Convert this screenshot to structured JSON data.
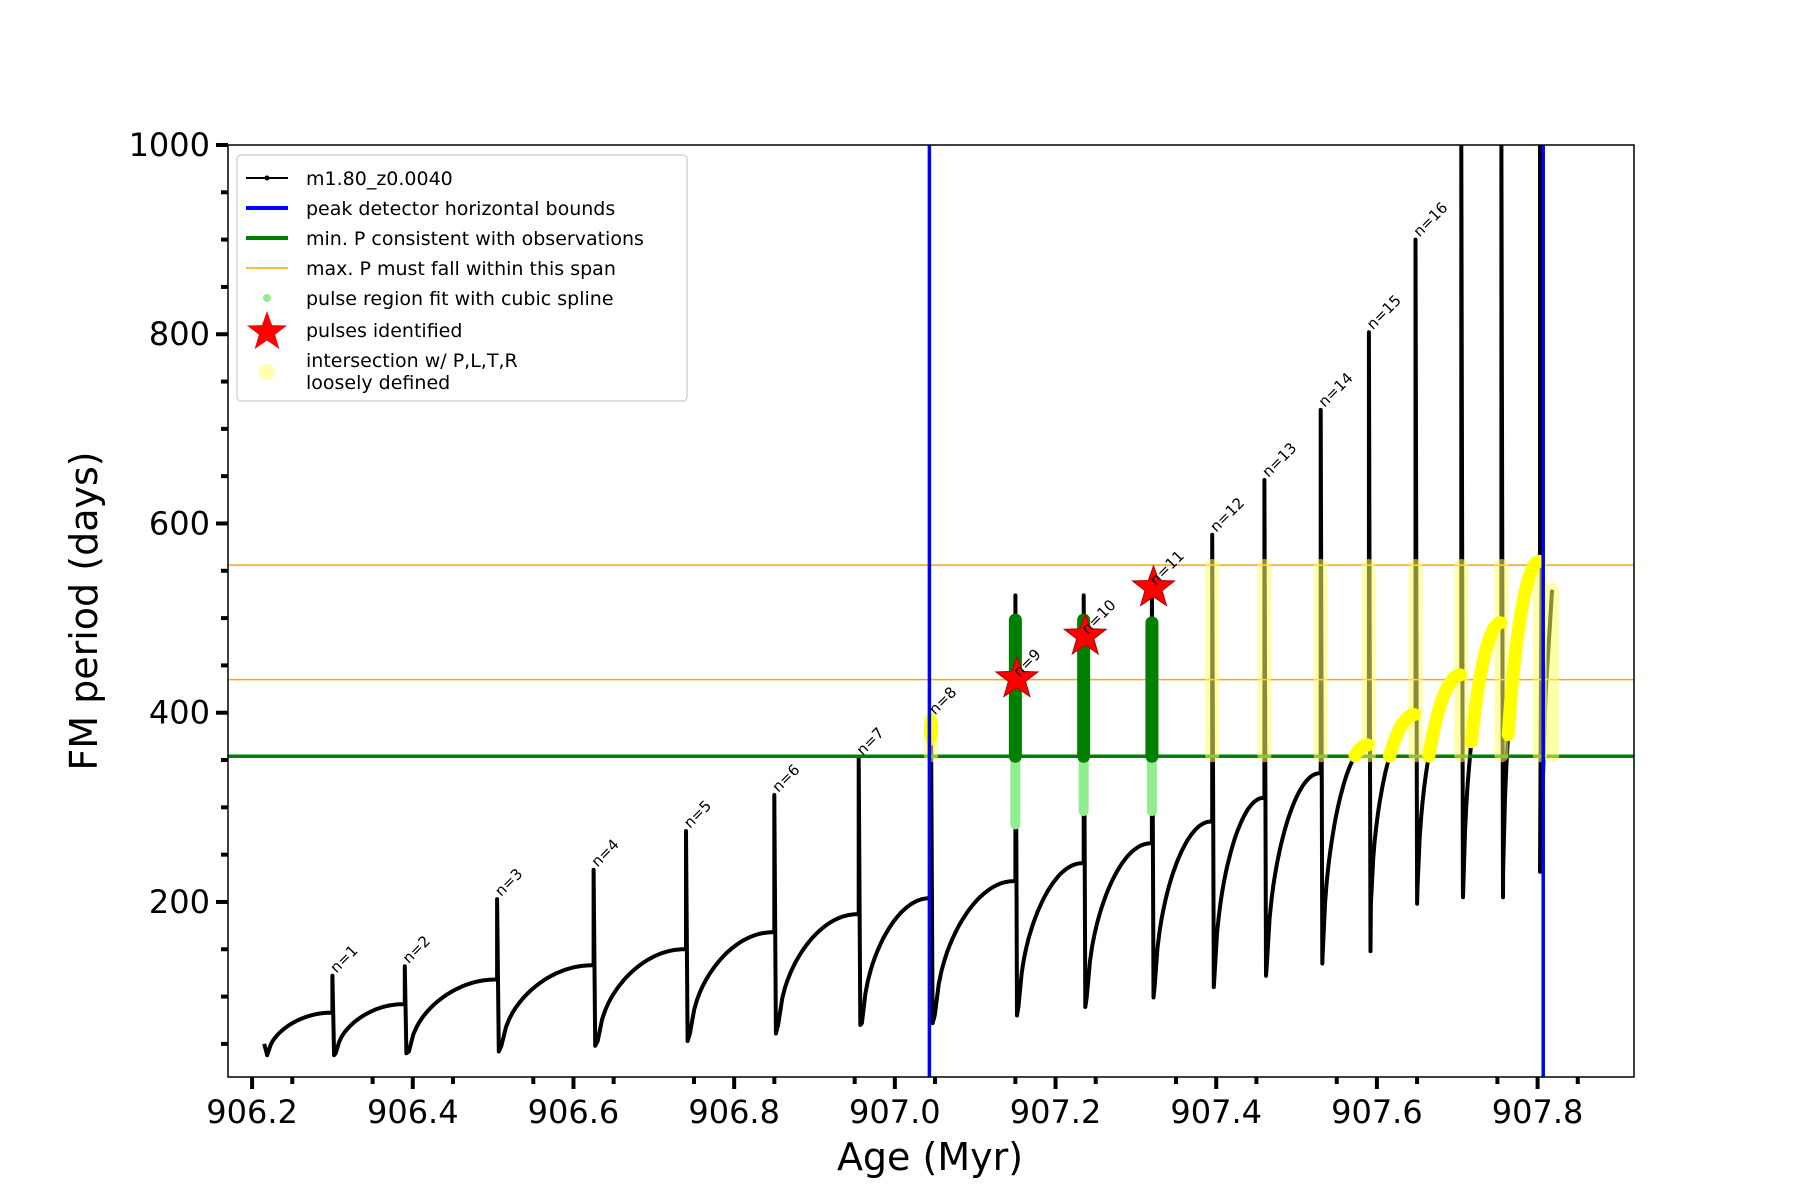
{
  "chart_data": {
    "type": "line",
    "xlabel": "Age (Myr)",
    "ylabel": "FM period (days)",
    "xlim": [
      906.17,
      907.92
    ],
    "ylim": [
      15,
      1000
    ],
    "x_ticks": [
      "906.2",
      "906.4",
      "906.6",
      "906.8",
      "907.0",
      "907.2",
      "907.4",
      "907.6",
      "907.8"
    ],
    "y_ticks": [
      "200",
      "400",
      "600",
      "800",
      "1000"
    ],
    "legend_position": "upper-left",
    "legend": [
      {
        "label": "m1.80_z0.0040",
        "kind": "line-marker",
        "color": "#000000"
      },
      {
        "label": "peak detector horizontal bounds",
        "kind": "line",
        "color": "#0000ff"
      },
      {
        "label": "min. P consistent with observations",
        "kind": "line",
        "color": "#008000"
      },
      {
        "label": "max. P must fall within this span",
        "kind": "thin-line",
        "color": "#ffa500"
      },
      {
        "label": "pulse region fit with cubic spline",
        "kind": "dot",
        "color": "#90ee90"
      },
      {
        "label": "pulses identified",
        "kind": "star",
        "color": "#ff0000"
      },
      {
        "label": "intersection w/ P,L,T,R",
        "label2": "loosely defined",
        "kind": "faint-dot",
        "color": "#ffff99"
      }
    ],
    "vertical_bounds": [
      907.043,
      907.807
    ],
    "min_period": 354,
    "max_period_span": [
      435,
      556
    ],
    "series": [
      {
        "name": "m1.80_z0.0040",
        "color": "#000000",
        "pulses": [
          {
            "n": 1,
            "x_start": 906.215,
            "x_end": 906.3,
            "pre_min": 50,
            "valley": 38,
            "pre_peak": 83,
            "spike": 122
          },
          {
            "n": 2,
            "x_start": 906.3,
            "x_end": 906.39,
            "pre_min": 38,
            "valley": 40,
            "pre_peak": 92,
            "spike": 132
          },
          {
            "n": 3,
            "x_start": 906.39,
            "x_end": 906.505,
            "pre_min": 40,
            "valley": 42,
            "pre_peak": 118,
            "spike": 203
          },
          {
            "n": 4,
            "x_start": 906.505,
            "x_end": 906.625,
            "pre_min": 42,
            "valley": 48,
            "pre_peak": 133,
            "spike": 234
          },
          {
            "n": 5,
            "x_start": 906.625,
            "x_end": 906.74,
            "pre_min": 48,
            "valley": 53,
            "pre_peak": 150,
            "spike": 275
          },
          {
            "n": 6,
            "x_start": 906.74,
            "x_end": 906.85,
            "pre_min": 53,
            "valley": 61,
            "pre_peak": 168,
            "spike": 313
          },
          {
            "n": 7,
            "x_start": 906.85,
            "x_end": 906.955,
            "pre_min": 61,
            "valley": 70,
            "pre_peak": 187,
            "spike": 352
          },
          {
            "n": 8,
            "x_start": 906.955,
            "x_end": 907.045,
            "pre_min": 70,
            "valley": 72,
            "pre_peak": 204,
            "spike": 395
          },
          {
            "n": 9,
            "x_start": 907.045,
            "x_end": 907.15,
            "pre_min": 72,
            "valley": 80,
            "pre_peak": 222,
            "spike": 524
          },
          {
            "n": 10,
            "x_start": 907.15,
            "x_end": 907.235,
            "pre_min": 80,
            "valley": 89,
            "pre_peak": 241,
            "spike": 524
          },
          {
            "n": 11,
            "x_start": 907.235,
            "x_end": 907.32,
            "pre_min": 89,
            "valley": 99,
            "pre_peak": 262,
            "spike": 540
          },
          {
            "n": 12,
            "x_start": 907.32,
            "x_end": 907.395,
            "pre_min": 99,
            "valley": 110,
            "pre_peak": 285,
            "spike": 588
          },
          {
            "n": 13,
            "x_start": 907.395,
            "x_end": 907.46,
            "pre_min": 110,
            "valley": 122,
            "pre_peak": 310,
            "spike": 646
          },
          {
            "n": 14,
            "x_start": 907.46,
            "x_end": 907.53,
            "pre_min": 122,
            "valley": 135,
            "pre_peak": 336,
            "spike": 720
          },
          {
            "n": 15,
            "x_start": 907.53,
            "x_end": 907.59,
            "pre_min": 135,
            "valley": 148,
            "pre_peak": 366,
            "spike": 802
          },
          {
            "n": 16,
            "x_start": 907.59,
            "x_end": 907.648,
            "pre_min": 148,
            "valley": 198,
            "pre_peak": 398,
            "spike": 900
          },
          {
            "n": 17,
            "x_start": 907.648,
            "x_end": 907.705,
            "pre_min": 198,
            "valley": 215,
            "pre_peak": 440,
            "spike": 1000
          },
          {
            "n": 18,
            "x_start": 907.705,
            "x_end": 907.755,
            "pre_min": 215,
            "valley": 205,
            "pre_peak": 495,
            "spike": 1000
          },
          {
            "n": 19,
            "x_start": 907.755,
            "x_end": 907.803,
            "pre_min": 205,
            "valley": 232,
            "pre_peak": 560,
            "spike": 1000
          }
        ],
        "tail": [
          {
            "x": 907.803,
            "y": 232
          },
          {
            "x": 907.81,
            "y": 420
          },
          {
            "x": 907.818,
            "y": 530
          }
        ]
      }
    ],
    "pulse_regions": [
      {
        "x": 907.15,
        "y_low": 282,
        "y_high": 498
      },
      {
        "x": 907.235,
        "y_low": 296,
        "y_high": 498
      },
      {
        "x": 907.32,
        "y_low": 296,
        "y_high": 495
      }
    ],
    "pulses_identified": [
      {
        "x": 907.152,
        "y": 436
      },
      {
        "x": 907.237,
        "y": 481
      },
      {
        "x": 907.322,
        "y": 532
      }
    ],
    "loose_columns": [
      {
        "x": 907.045,
        "y_low": 355,
        "y_high": 395
      },
      {
        "x": 907.395,
        "y_low": 355,
        "y_high": 555
      },
      {
        "x": 907.46,
        "y_low": 355,
        "y_high": 555
      },
      {
        "x": 907.53,
        "y_low": 355,
        "y_high": 555
      },
      {
        "x": 907.59,
        "y_low": 355,
        "y_high": 555
      },
      {
        "x": 907.648,
        "y_low": 355,
        "y_high": 555
      },
      {
        "x": 907.705,
        "y_low": 355,
        "y_high": 555
      },
      {
        "x": 907.755,
        "y_low": 355,
        "y_high": 555
      },
      {
        "x": 907.803,
        "y_low": 355,
        "y_high": 555
      },
      {
        "x": 907.818,
        "y_low": 355,
        "y_high": 530
      }
    ],
    "pulse_annotations": [
      {
        "label": "n=1",
        "x": 906.3,
        "y": 122
      },
      {
        "label": "n=2",
        "x": 906.39,
        "y": 132
      },
      {
        "label": "n=3",
        "x": 906.505,
        "y": 203
      },
      {
        "label": "n=4",
        "x": 906.625,
        "y": 234
      },
      {
        "label": "n=5",
        "x": 906.74,
        "y": 275
      },
      {
        "label": "n=6",
        "x": 906.85,
        "y": 313
      },
      {
        "label": "n=7",
        "x": 906.955,
        "y": 352
      },
      {
        "label": "n=8",
        "x": 907.045,
        "y": 395
      },
      {
        "label": "n=9",
        "x": 907.15,
        "y": 435
      },
      {
        "label": "n=10",
        "x": 907.235,
        "y": 480
      },
      {
        "label": "n=11",
        "x": 907.32,
        "y": 532
      },
      {
        "label": "n=12",
        "x": 907.395,
        "y": 588
      },
      {
        "label": "n=13",
        "x": 907.46,
        "y": 646
      },
      {
        "label": "n=14",
        "x": 907.53,
        "y": 720
      },
      {
        "label": "n=15",
        "x": 907.59,
        "y": 802
      },
      {
        "label": "n=16",
        "x": 907.648,
        "y": 900
      }
    ]
  }
}
